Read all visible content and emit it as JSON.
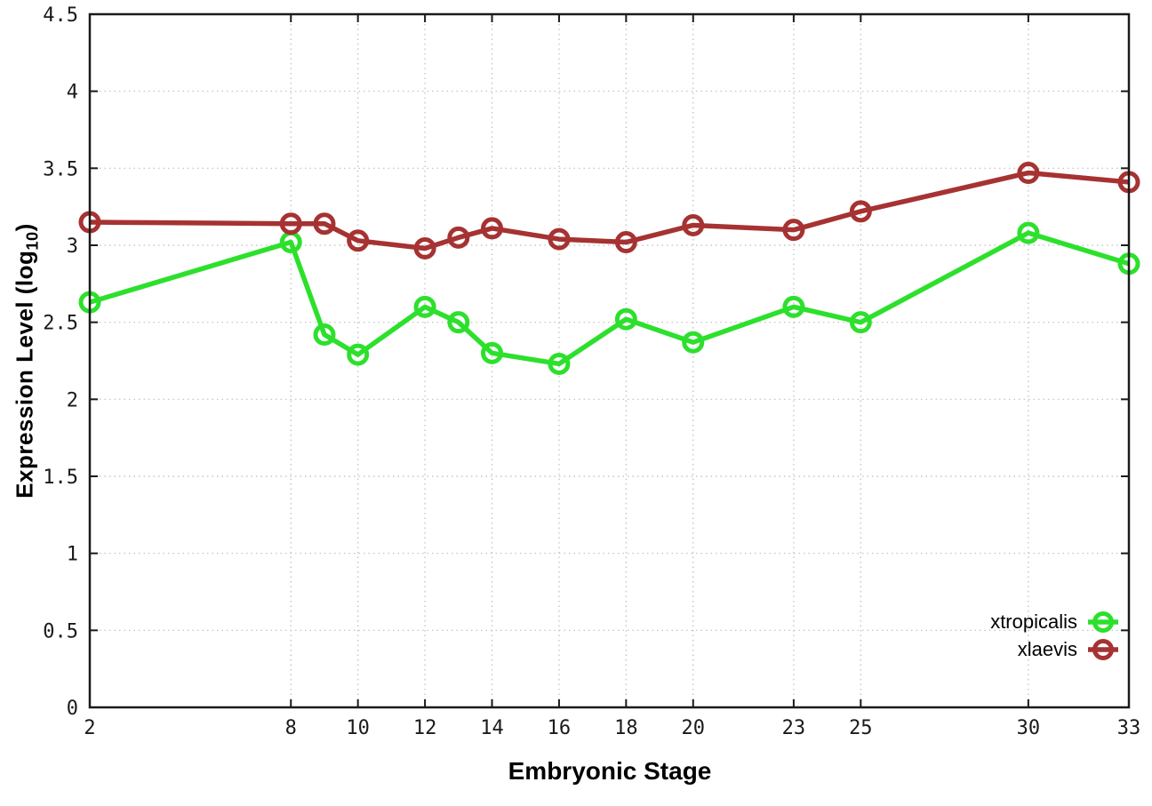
{
  "chart_data": {
    "type": "line",
    "title": "",
    "xlabel": "Embryonic Stage",
    "ylabel": "Expression Level (log10)",
    "ylabel_parts": {
      "prefix": "Expression Level (log",
      "sub": "10",
      "suffix": ")"
    },
    "x": [
      2,
      8,
      9,
      10,
      12,
      13,
      14,
      16,
      18,
      20,
      23,
      25,
      30,
      33
    ],
    "xlim": [
      2,
      33
    ],
    "ylim": [
      0,
      4.5
    ],
    "x_tick_labels": [
      "2",
      "8",
      "10",
      "12",
      "14",
      "16",
      "18",
      "20",
      "23",
      "25",
      "30",
      "33"
    ],
    "x_ticks": [
      2,
      8,
      10,
      12,
      14,
      16,
      18,
      20,
      23,
      25,
      30,
      33
    ],
    "y_ticks": [
      0,
      0.5,
      1,
      1.5,
      2,
      2.5,
      3,
      3.5,
      4,
      4.5
    ],
    "y_tick_labels": [
      "0",
      "0.5",
      "1",
      "1.5",
      "2",
      "2.5",
      "3",
      "3.5",
      "4",
      "4.5"
    ],
    "grid": true,
    "legend_position": "inside-bottom-right",
    "marker": "open-circle",
    "series": [
      {
        "name": "xtropicalis",
        "color": "#2ce02c",
        "values": [
          2.63,
          3.02,
          2.42,
          2.29,
          2.6,
          2.5,
          2.3,
          2.23,
          2.52,
          2.37,
          2.6,
          2.5,
          3.08,
          2.88
        ]
      },
      {
        "name": "xlaevis",
        "color": "#a63232",
        "values": [
          3.15,
          3.14,
          3.14,
          3.03,
          2.98,
          3.05,
          3.11,
          3.04,
          3.02,
          3.13,
          3.1,
          3.22,
          3.47,
          3.41
        ]
      }
    ],
    "colors": {
      "grid": "#bdbdbd",
      "border": "#1a1a1a",
      "tick_text": "#1a1a1a",
      "background": "#ffffff"
    }
  }
}
